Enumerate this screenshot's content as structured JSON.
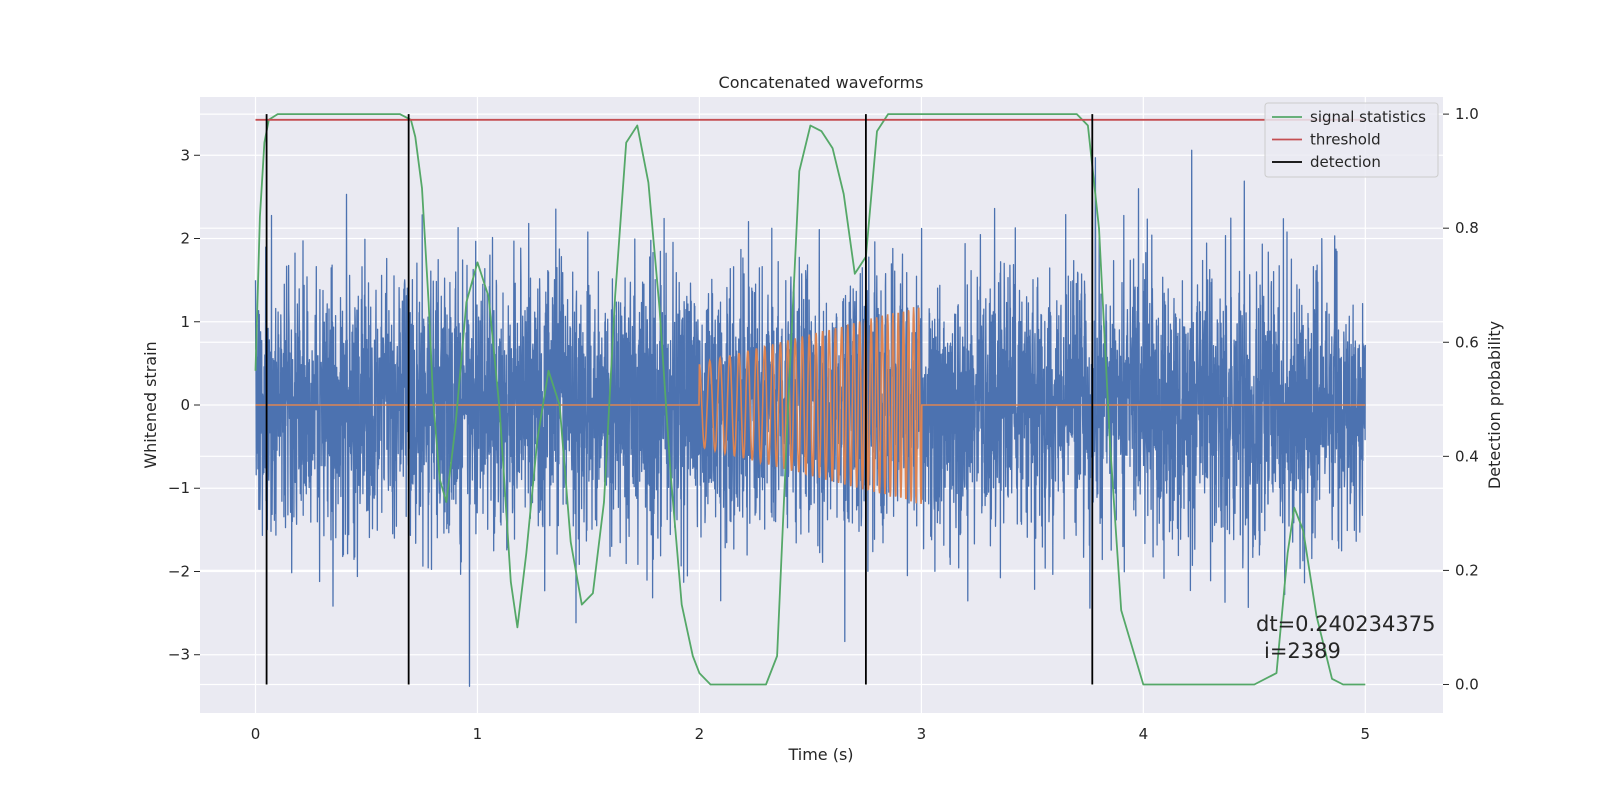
{
  "chart_data": {
    "type": "line",
    "title": "Concatenated waveforms",
    "xlabel": "Time (s)",
    "ylabel_left": "Whitened strain",
    "ylabel_right": "Detection probability",
    "xlim": [
      -0.25,
      5.35
    ],
    "ylim_left": [
      -3.7,
      3.7
    ],
    "ylim_right": [
      -0.05,
      1.03
    ],
    "xticks": [
      0,
      1,
      2,
      3,
      4,
      5
    ],
    "xtick_labels": [
      "0",
      "1",
      "2",
      "3",
      "4",
      "5"
    ],
    "yticks_left": [
      -3,
      -2,
      -1,
      0,
      1,
      2,
      3
    ],
    "ytick_labels_left": [
      "−3",
      "−2",
      "−1",
      "0",
      "1",
      "2",
      "3"
    ],
    "yticks_right": [
      0.0,
      0.2,
      0.4,
      0.6,
      0.8,
      1.0
    ],
    "ytick_labels_right": [
      "0.0",
      "0.2",
      "0.4",
      "0.6",
      "0.8",
      "1.0"
    ],
    "grid": true,
    "style": "seaborn-darkgrid",
    "legend_position": "top-right",
    "legend": [
      {
        "label": "signal statistics",
        "color": "#55a868"
      },
      {
        "label": "threshold",
        "color": "#c44e52"
      },
      {
        "label": "detection",
        "color": "#000000"
      }
    ],
    "series": [
      {
        "name": "",
        "axis": "left",
        "color": "#4c72b0",
        "kind": "noise",
        "x_range": [
          0,
          5
        ],
        "amplitude_std": 0.8,
        "max_abs": 3.5
      },
      {
        "name": "",
        "axis": "left",
        "color": "#dd8452",
        "kind": "chirp",
        "x_range": [
          0,
          5
        ],
        "signal_window": [
          2.0,
          3.0
        ],
        "envelope_start": 0.5,
        "envelope_end": 1.2,
        "freq_start": 20,
        "freq_end": 45
      },
      {
        "name": "signal statistics",
        "axis": "right",
        "color": "#55a868",
        "x": [
          0.0,
          0.02,
          0.04,
          0.06,
          0.1,
          0.2,
          0.4,
          0.6,
          0.65,
          0.7,
          0.72,
          0.75,
          0.78,
          0.8,
          0.83,
          0.86,
          0.9,
          0.95,
          1.0,
          1.05,
          1.1,
          1.15,
          1.18,
          1.22,
          1.27,
          1.32,
          1.37,
          1.42,
          1.47,
          1.52,
          1.57,
          1.62,
          1.67,
          1.72,
          1.77,
          1.82,
          1.87,
          1.92,
          1.97,
          2.0,
          2.05,
          2.1,
          2.2,
          2.3,
          2.35,
          2.4,
          2.45,
          2.5,
          2.55,
          2.6,
          2.65,
          2.7,
          2.75,
          2.8,
          2.85,
          2.9,
          3.0,
          3.2,
          3.5,
          3.7,
          3.75,
          3.8,
          3.85,
          3.9,
          4.0,
          4.2,
          4.5,
          4.6,
          4.65,
          4.68,
          4.72,
          4.78,
          4.85,
          4.9,
          5.0
        ],
        "y": [
          0.55,
          0.82,
          0.95,
          0.99,
          1.0,
          1.0,
          1.0,
          1.0,
          1.0,
          0.99,
          0.96,
          0.87,
          0.67,
          0.5,
          0.36,
          0.32,
          0.45,
          0.67,
          0.74,
          0.68,
          0.48,
          0.18,
          0.1,
          0.23,
          0.43,
          0.55,
          0.49,
          0.25,
          0.14,
          0.16,
          0.32,
          0.68,
          0.95,
          0.98,
          0.88,
          0.66,
          0.37,
          0.14,
          0.05,
          0.02,
          0.0,
          0.0,
          0.0,
          0.0,
          0.05,
          0.49,
          0.9,
          0.98,
          0.97,
          0.94,
          0.86,
          0.72,
          0.75,
          0.97,
          1.0,
          1.0,
          1.0,
          1.0,
          1.0,
          1.0,
          0.98,
          0.8,
          0.42,
          0.13,
          0.0,
          0.0,
          0.0,
          0.02,
          0.23,
          0.31,
          0.27,
          0.12,
          0.01,
          0.0,
          0.0
        ]
      },
      {
        "name": "threshold",
        "axis": "right",
        "color": "#c44e52",
        "x": [
          0,
          5
        ],
        "y": [
          0.99,
          0.99
        ]
      }
    ],
    "detections": [
      0.05,
      0.69,
      2.75,
      3.77
    ],
    "detection_color": "#000000",
    "detection_range_right": [
      0.0,
      1.0
    ],
    "annotation": {
      "line1": "dt=0.240234375",
      "line2": "i=2389"
    }
  }
}
